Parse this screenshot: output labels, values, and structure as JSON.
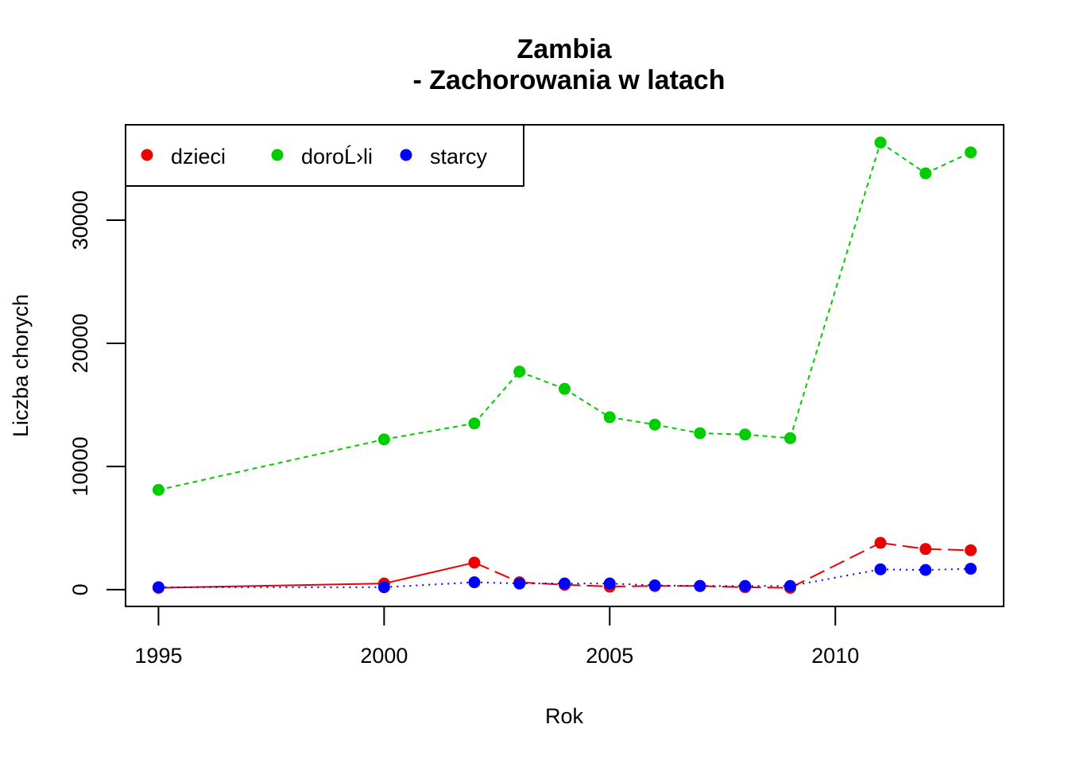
{
  "chart_data": {
    "type": "line",
    "title_line1": "Zambia",
    "title_line2": "- Zachorowania w latach",
    "xlabel": "Rok",
    "ylabel": "Liczba chorych",
    "x_ticks": [
      1995,
      2000,
      2005,
      2010
    ],
    "y_ticks": [
      0,
      10000,
      20000,
      30000
    ],
    "xlim": [
      1994.27,
      2013.73
    ],
    "ylim": [
      -1360,
      37740
    ],
    "grid": false,
    "legend_position": "top-left",
    "x": [
      1995,
      2000,
      2002,
      2003,
      2004,
      2005,
      2006,
      2007,
      2008,
      2009,
      2011,
      2012,
      2013
    ],
    "series": [
      {
        "name": "dzieci",
        "color": "#ee0000",
        "dash": "solid-longdash",
        "values": [
          150,
          500,
          2200,
          600,
          400,
          250,
          300,
          300,
          200,
          150,
          3800,
          3300,
          3200
        ]
      },
      {
        "name": "doroĹ›li",
        "color": "#00cd00",
        "dash": "dashed",
        "values": [
          8100,
          12200,
          13500,
          17700,
          16300,
          14000,
          13400,
          12700,
          12600,
          12300,
          36300,
          33800,
          35500
        ]
      },
      {
        "name": "starcy",
        "color": "#0000ff",
        "dash": "dotted",
        "values": [
          200,
          200,
          600,
          500,
          500,
          500,
          350,
          300,
          300,
          300,
          1650,
          1600,
          1700
        ]
      }
    ]
  }
}
